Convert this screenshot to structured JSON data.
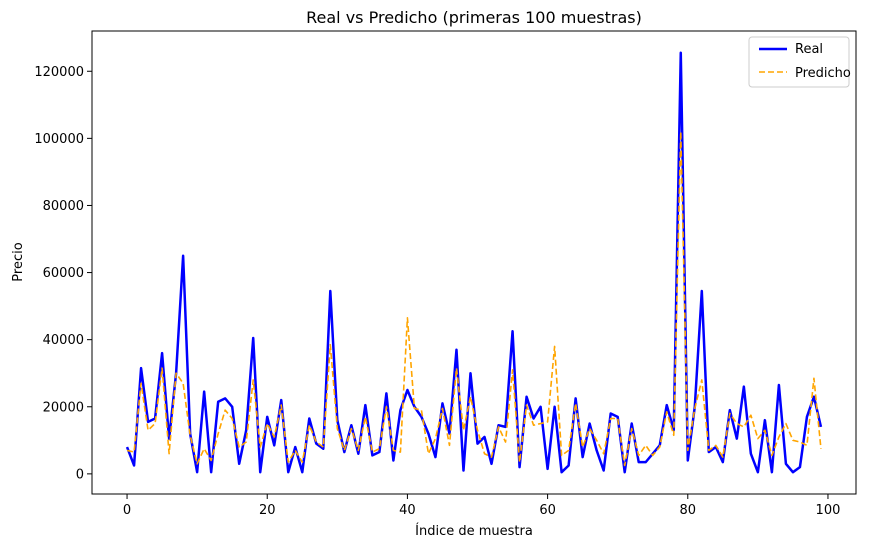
{
  "chart_data": {
    "type": "line",
    "title": "Real vs Predicho (primeras 100 muestras)",
    "xlabel": "Índice de muestra",
    "ylabel": "Precio",
    "xlim": [
      -5,
      104
    ],
    "ylim": [
      -6000,
      132000
    ],
    "xticks": [
      0,
      20,
      40,
      60,
      80,
      100
    ],
    "yticks": [
      0,
      20000,
      40000,
      60000,
      80000,
      100000,
      120000
    ],
    "grid": false,
    "legend_position": "top-right",
    "x": [
      0,
      1,
      2,
      3,
      4,
      5,
      6,
      7,
      8,
      9,
      10,
      11,
      12,
      13,
      14,
      15,
      16,
      17,
      18,
      19,
      20,
      21,
      22,
      23,
      24,
      25,
      26,
      27,
      28,
      29,
      30,
      31,
      32,
      33,
      34,
      35,
      36,
      37,
      38,
      39,
      40,
      41,
      42,
      43,
      44,
      45,
      46,
      47,
      48,
      49,
      50,
      51,
      52,
      53,
      54,
      55,
      56,
      57,
      58,
      59,
      60,
      61,
      62,
      63,
      64,
      65,
      66,
      67,
      68,
      69,
      70,
      71,
      72,
      73,
      74,
      75,
      76,
      77,
      78,
      79,
      80,
      81,
      82,
      83,
      84,
      85,
      86,
      87,
      88,
      89,
      90,
      91,
      92,
      93,
      94,
      95,
      96,
      97,
      98,
      99
    ],
    "series": [
      {
        "name": "Real",
        "color": "#0000ff",
        "style": "solid",
        "values": [
          8000,
          2500,
          31500,
          15500,
          16500,
          36000,
          10500,
          30000,
          65000,
          12000,
          500,
          24500,
          500,
          21500,
          22500,
          20000,
          3000,
          13000,
          40500,
          500,
          17000,
          8500,
          22000,
          500,
          8000,
          500,
          16500,
          9000,
          7500,
          54500,
          16000,
          6500,
          14500,
          6000,
          20500,
          5500,
          6500,
          24000,
          4000,
          19000,
          25000,
          20000,
          17000,
          12000,
          5000,
          21000,
          12000,
          37000,
          1000,
          30000,
          9000,
          11000,
          3000,
          14500,
          14000,
          42500,
          2000,
          23000,
          16500,
          20000,
          1500,
          20000,
          500,
          2500,
          22500,
          5000,
          15000,
          7000,
          1000,
          18000,
          17000,
          500,
          15000,
          3500,
          3500,
          6000,
          8500,
          20500,
          13000,
          125500,
          4000,
          20000,
          54500,
          6500,
          8000,
          3500,
          19000,
          10500,
          26000,
          6000,
          500,
          16000,
          500,
          26500,
          3000,
          500,
          2000,
          17000,
          23000,
          14000
        ]
      },
      {
        "name": "Predicho",
        "color": "#ffa500",
        "style": "dashed",
        "values": [
          7000,
          6500,
          27000,
          13000,
          15000,
          31500,
          6000,
          30000,
          27000,
          11500,
          3000,
          7500,
          4000,
          12000,
          19000,
          16500,
          8000,
          9500,
          28000,
          8000,
          15000,
          11000,
          20500,
          3500,
          7000,
          3500,
          14500,
          9500,
          8000,
          38500,
          13500,
          7000,
          13500,
          7000,
          17000,
          6500,
          7500,
          20000,
          7000,
          6500,
          46500,
          19500,
          19000,
          6000,
          10500,
          19500,
          8500,
          31500,
          13000,
          23000,
          13000,
          6000,
          5000,
          14000,
          9500,
          31000,
          3500,
          20500,
          14500,
          15000,
          15500,
          38000,
          5500,
          7000,
          21000,
          8000,
          13500,
          10000,
          6000,
          16500,
          16500,
          2500,
          13500,
          5500,
          8500,
          5500,
          8000,
          18500,
          11500,
          102000,
          7000,
          19500,
          28000,
          7000,
          8500,
          5000,
          18000,
          15000,
          14000,
          17500,
          10500,
          13000,
          5500,
          11000,
          15000,
          10000,
          9500,
          8500,
          28500,
          7500
        ]
      }
    ]
  }
}
